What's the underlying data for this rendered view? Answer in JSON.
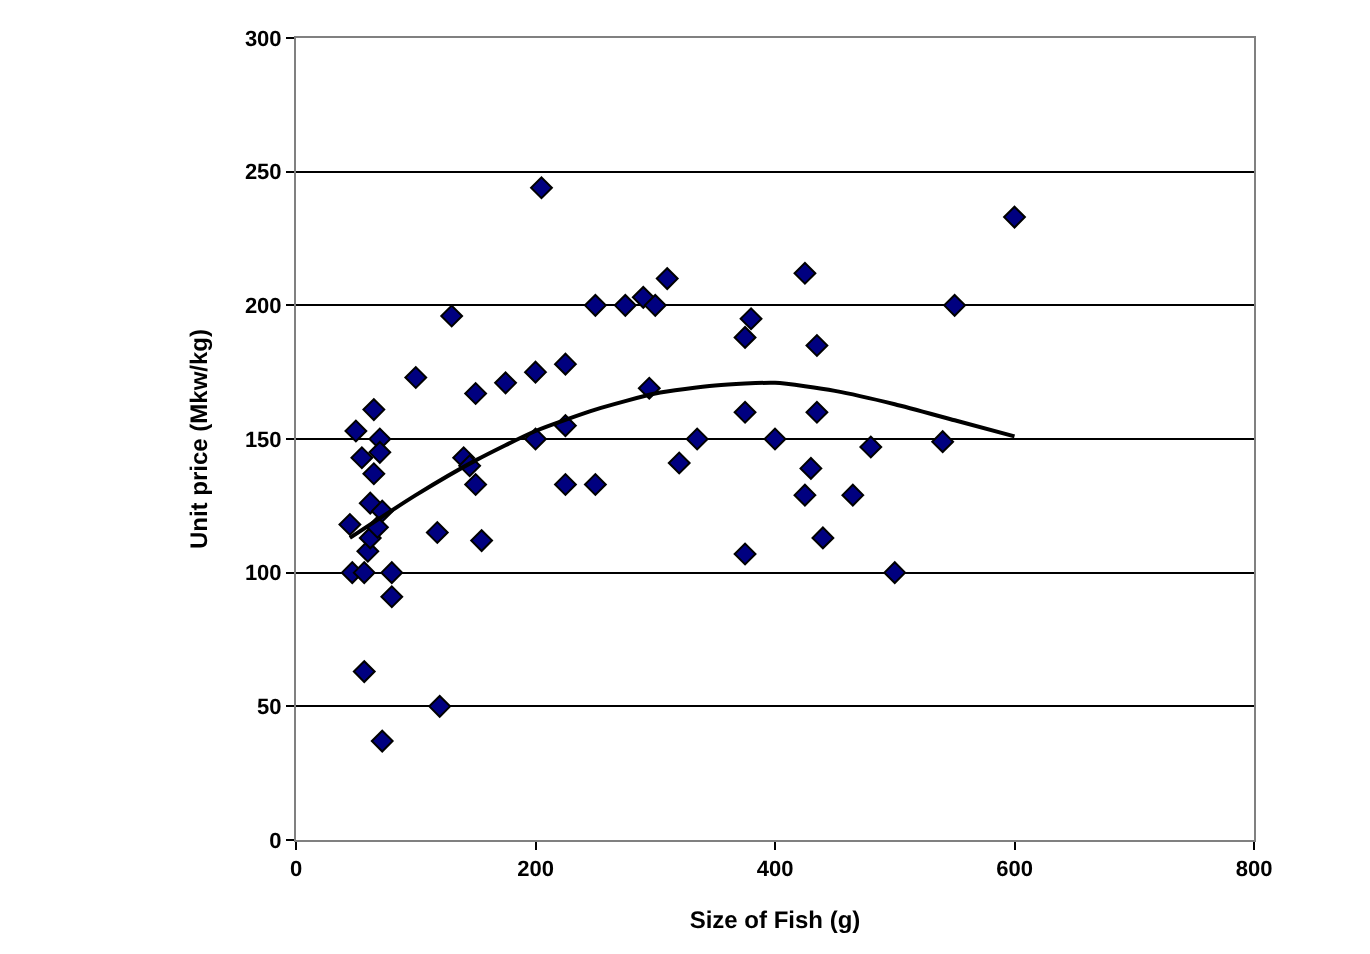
{
  "chart_data": {
    "type": "scatter",
    "xlabel": "Size of Fish (g)",
    "ylabel": "Unit price (Mkw/kg)",
    "xlim": [
      0,
      800
    ],
    "xticks": [
      0,
      200,
      400,
      600,
      800
    ],
    "ylim": [
      0,
      300
    ],
    "yticks": [
      0,
      50,
      100,
      150,
      200,
      250,
      300
    ],
    "grid": "y",
    "marker": "diamond",
    "series": [
      {
        "color": "#000080",
        "x": [
          45,
          47,
          50,
          55,
          57,
          57,
          60,
          62,
          62,
          65,
          65,
          68,
          70,
          70,
          72,
          72,
          80,
          80,
          100,
          118,
          120,
          130,
          140,
          145,
          150,
          150,
          155,
          175,
          200,
          200,
          205,
          225,
          225,
          225,
          250,
          250,
          275,
          290,
          295,
          300,
          310,
          320,
          335,
          375,
          375,
          375,
          380,
          400,
          425,
          425,
          430,
          435,
          435,
          440,
          465,
          480,
          500,
          540,
          550,
          600
        ],
        "values": [
          118,
          100,
          153,
          143,
          100,
          63,
          108,
          113,
          126,
          137,
          161,
          117,
          150,
          145,
          37,
          123,
          100,
          91,
          173,
          115,
          50,
          196,
          143,
          140,
          133,
          167,
          112,
          171,
          150,
          175,
          244,
          178,
          155,
          133,
          133,
          200,
          200,
          203,
          169,
          200,
          210,
          141,
          150,
          188,
          160,
          107,
          195,
          150,
          212,
          129,
          139,
          185,
          160,
          113,
          129,
          147,
          100,
          149,
          200,
          233
        ]
      },
      {
        "type": "line",
        "color": "#000000",
        "marker": "none",
        "line_style": "solid",
        "x": [
          45,
          100,
          150,
          200,
          250,
          300,
          350,
          400,
          450,
          500,
          550,
          600
        ],
        "values": [
          113,
          129,
          142,
          153,
          161,
          167,
          170,
          171,
          168,
          163,
          157,
          151
        ]
      }
    ]
  }
}
